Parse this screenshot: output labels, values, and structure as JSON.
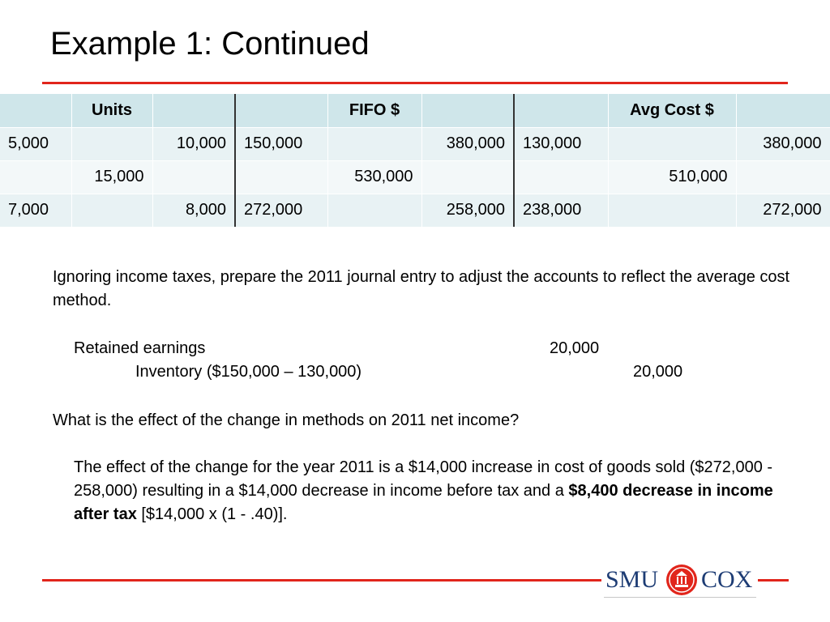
{
  "slide": {
    "title": "Example 1: Continued"
  },
  "table": {
    "headers": [
      "",
      "Units",
      "",
      "",
      "",
      "FIFO $",
      "",
      "",
      "",
      "Avg Cost $",
      ""
    ],
    "rows": [
      [
        "5,000",
        "",
        "10,000",
        "150,000",
        "",
        "380,000",
        "130,000",
        "",
        "380,000"
      ],
      [
        "",
        "15,000",
        "",
        "",
        "530,000",
        "",
        "",
        "510,000",
        ""
      ],
      [
        "7,000",
        "",
        "8,000",
        "272,000",
        "",
        "258,000",
        "238,000",
        "",
        "272,000"
      ]
    ]
  },
  "body": {
    "question1": "Ignoring income taxes, prepare the 2011 journal entry to adjust the accounts to reflect the average cost method.",
    "journal_entry": {
      "debit_account": "Retained earnings",
      "debit_amount": "20,000",
      "credit_account": "Inventory ($150,000 – 130,000)",
      "credit_amount": "20,000"
    },
    "question2": "What is the effect of the change in methods on 2011 net income?",
    "answer_part1": "The effect of the change for the year 2011 is a $14,000 increase in cost of goods sold ($272,000 - 258,000) resulting in a $14,000 decrease in income before tax and a ",
    "answer_bold": "$8,400 decrease in income after tax",
    "answer_part2": " [$14,000 x (1 - .40)]."
  },
  "logo": {
    "left_text": "SMU",
    "right_text": "COX",
    "icon": "seal-icon",
    "color": "#1d3c74",
    "accent": "#e1251b"
  }
}
